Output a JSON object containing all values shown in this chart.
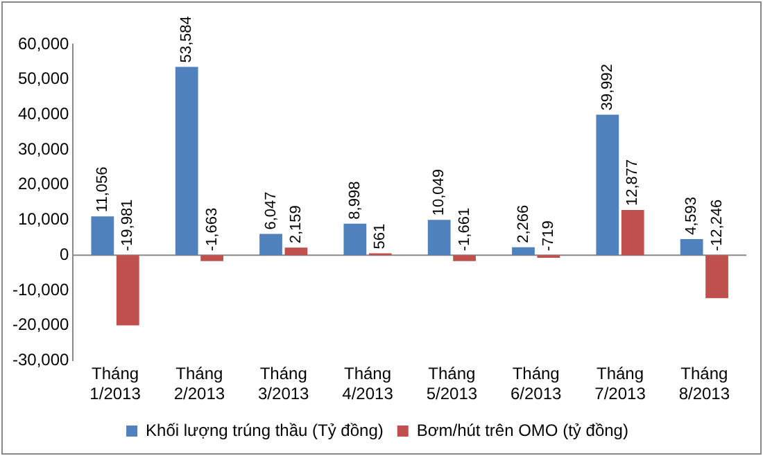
{
  "chart_data": {
    "type": "bar",
    "categories": [
      "Tháng 1/2013",
      "Tháng 2/2013",
      "Tháng 3/2013",
      "Tháng 4/2013",
      "Tháng 5/2013",
      "Tháng 6/2013",
      "Tháng 7/2013",
      "Tháng 8/2013"
    ],
    "series": [
      {
        "name": "Khối lượng trúng thầu (Tỷ đồng)",
        "color": "#4f81bd",
        "values": [
          11056,
          53584,
          6047,
          8998,
          10049,
          2266,
          39992,
          4593
        ],
        "value_labels": [
          "11,056",
          "53,584",
          "6,047",
          "8,998",
          "10,049",
          "2,266",
          "39,992",
          "4,593"
        ]
      },
      {
        "name": "Bơm/hút trên OMO (tỷ đồng)",
        "color": "#c0504d",
        "values": [
          -19981,
          -1663,
          2159,
          561,
          -1661,
          -719,
          12877,
          -12246
        ],
        "value_labels": [
          "-19,981",
          "-1,663",
          "2,159",
          "561",
          "-1,661",
          "-719",
          "12,877",
          "-12,246"
        ]
      }
    ],
    "ylim": [
      -30000,
      60000
    ],
    "yticks": [
      {
        "value": -30000,
        "label": "-30,000"
      },
      {
        "value": -20000,
        "label": "-20,000"
      },
      {
        "value": -10000,
        "label": "-10,000"
      },
      0,
      {
        "value": 10000,
        "label": "10,000"
      },
      {
        "value": 20000,
        "label": "20,000"
      },
      {
        "value": 30000,
        "label": "30,000"
      },
      {
        "value": 40000,
        "label": "40,000"
      },
      {
        "value": 50000,
        "label": "50,000"
      },
      {
        "value": 60000,
        "label": "60,000"
      }
    ],
    "grid": false,
    "ref_lines": [
      {
        "axis": "y",
        "value": 0,
        "color": "#888888"
      }
    ],
    "legend": "bottom"
  }
}
